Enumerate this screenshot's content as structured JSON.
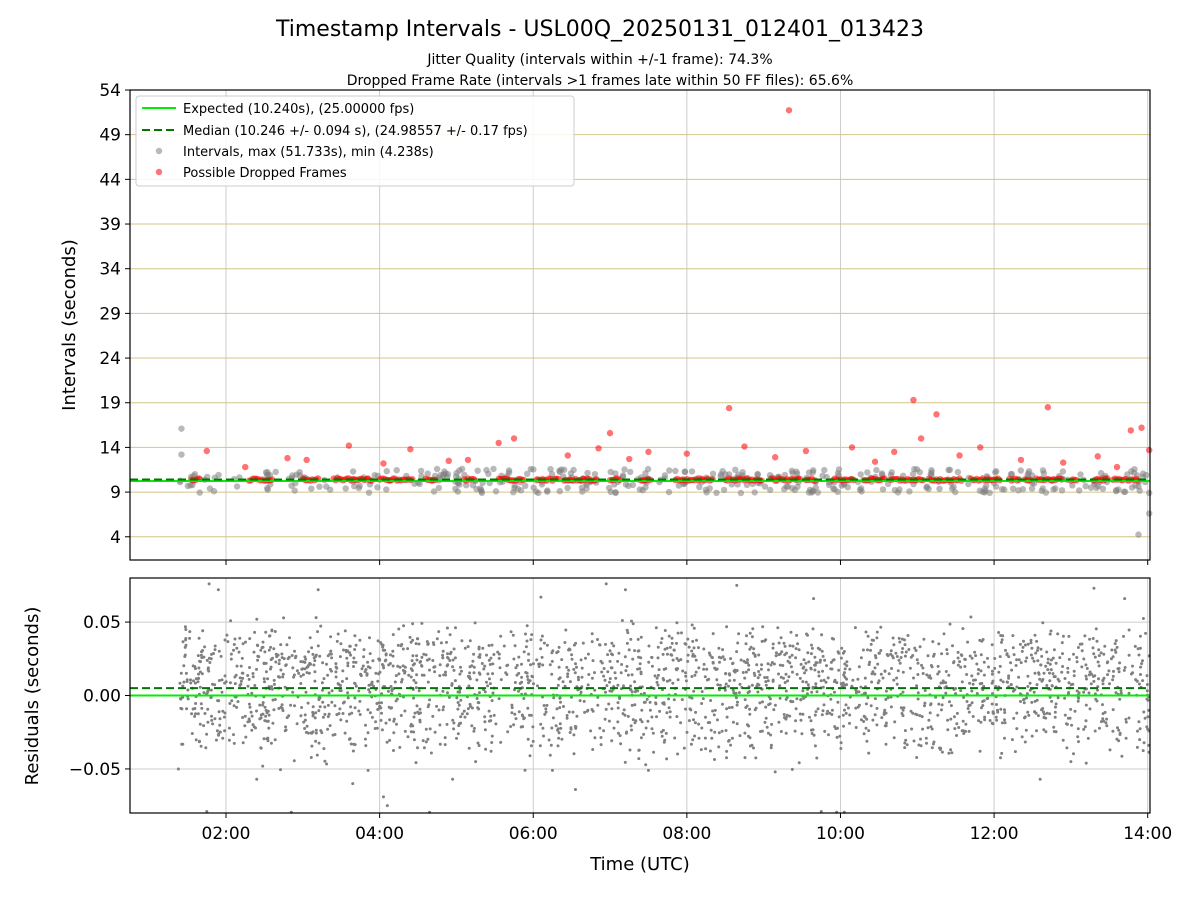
{
  "figure": {
    "title": "Timestamp Intervals - USL00Q_20250131_012401_013423",
    "subtitle_1": "Jitter Quality (intervals within +/-1 frame): 74.3%",
    "subtitle_2": "Dropped Frame Rate (intervals >1 frames late within 50 FF files): 65.6%"
  },
  "chart_data": [
    {
      "type": "scatter",
      "panel": "top",
      "xlabel": "",
      "ylabel": "Intervals (seconds)",
      "x_unit": "hours UTC",
      "xlim": [
        0.75,
        14.03
      ],
      "ylim": [
        1.4,
        54
      ],
      "x_ticks": [
        2,
        4,
        6,
        8,
        10,
        12,
        14
      ],
      "y_ticks": [
        4,
        9,
        14,
        19,
        24,
        29,
        34,
        39,
        44,
        49,
        54
      ],
      "y_tick_labels": [
        "4",
        "9",
        "14",
        "19",
        "24",
        "29",
        "34",
        "39",
        "44",
        "49",
        "54"
      ],
      "grid": "on",
      "legend_placement": "top-left",
      "colors": {
        "expected": "#00ee00",
        "median": "#007700",
        "intervals": "#808080",
        "dropped": "#ff0000",
        "hgrid": "#d4c48a",
        "vgrid": "#cccccc"
      },
      "lines": {
        "expected": {
          "name": "Expected (10.240s), (25.00000 fps)",
          "y": 10.24
        },
        "median": {
          "name": "Median (10.246 +/- 0.094 s), (24.98557 +/- 0.17 fps)",
          "y": 10.246
        }
      },
      "series": [
        {
          "name": "Intervals, max (51.733s), min (4.238s)",
          "points": [
            [
              1.42,
              16.1
            ],
            [
              1.42,
              13.2
            ],
            [
              13.88,
              4.24
            ],
            [
              14.02,
              6.6
            ],
            [
              13.98,
              10.9
            ]
          ],
          "band": {
            "x": [
              1.4,
              14.02
            ],
            "y": [
              8.9,
              11.6
            ],
            "count": 420
          }
        },
        {
          "name": "Possible Dropped Frames",
          "points": [
            [
              9.33,
              51.73
            ],
            [
              8.55,
              18.4
            ],
            [
              10.95,
              19.3
            ],
            [
              11.25,
              17.7
            ],
            [
              12.7,
              18.5
            ],
            [
              13.78,
              15.9
            ],
            [
              13.92,
              16.2
            ],
            [
              7.0,
              15.6
            ],
            [
              5.75,
              15.0
            ],
            [
              5.55,
              14.5
            ],
            [
              11.05,
              15.0
            ],
            [
              3.6,
              14.2
            ],
            [
              14.02,
              13.7
            ],
            [
              10.15,
              14.0
            ],
            [
              11.82,
              14.0
            ],
            [
              8.75,
              14.1
            ],
            [
              4.4,
              13.8
            ],
            [
              9.55,
              13.6
            ],
            [
              1.75,
              13.6
            ],
            [
              6.85,
              13.9
            ],
            [
              12.35,
              12.6
            ],
            [
              12.9,
              12.3
            ],
            [
              13.35,
              13.0
            ],
            [
              2.8,
              12.8
            ],
            [
              3.05,
              12.6
            ],
            [
              4.9,
              12.5
            ],
            [
              6.45,
              13.1
            ],
            [
              7.5,
              13.5
            ],
            [
              8.0,
              13.3
            ],
            [
              10.7,
              13.5
            ],
            [
              11.55,
              13.1
            ],
            [
              2.25,
              11.8
            ],
            [
              4.05,
              12.2
            ],
            [
              5.15,
              12.6
            ],
            [
              7.25,
              12.7
            ],
            [
              9.15,
              12.9
            ],
            [
              10.45,
              12.4
            ],
            [
              13.6,
              11.8
            ]
          ],
          "run_segments": [
            [
              1.55,
              1.65
            ],
            [
              2.3,
              2.6
            ],
            [
              3.0,
              3.2
            ],
            [
              3.4,
              3.9
            ],
            [
              4.0,
              4.45
            ],
            [
              4.6,
              4.75
            ],
            [
              5.1,
              5.25
            ],
            [
              5.55,
              5.9
            ],
            [
              6.05,
              6.35
            ],
            [
              6.4,
              6.85
            ],
            [
              7.0,
              7.15
            ],
            [
              7.4,
              7.55
            ],
            [
              7.85,
              8.35
            ],
            [
              8.5,
              9.0
            ],
            [
              9.1,
              9.5
            ],
            [
              9.55,
              9.7
            ],
            [
              9.9,
              10.2
            ],
            [
              10.3,
              10.6
            ],
            [
              10.65,
              11.1
            ],
            [
              11.15,
              11.6
            ],
            [
              11.7,
              12.1
            ],
            [
              12.2,
              12.35
            ],
            [
              12.4,
              12.5
            ],
            [
              12.55,
              12.9
            ],
            [
              13.0,
              13.1
            ],
            [
              13.3,
              13.5
            ],
            [
              13.55,
              13.9
            ]
          ],
          "run_y": 10.4
        }
      ]
    },
    {
      "type": "scatter",
      "panel": "bottom",
      "xlabel": "Time (UTC)",
      "ylabel": "Residuals (seconds)",
      "x_unit": "hours UTC",
      "xlim": [
        0.75,
        14.03
      ],
      "ylim": [
        -0.08,
        0.08
      ],
      "x_ticks": [
        2,
        4,
        6,
        8,
        10,
        12,
        14
      ],
      "x_tick_labels": [
        "02:00",
        "04:00",
        "06:00",
        "08:00",
        "10:00",
        "12:00",
        "14:00"
      ],
      "y_ticks": [
        -0.05,
        0.0,
        0.05
      ],
      "y_tick_labels": [
        "−0.05",
        "0.00",
        "0.05"
      ],
      "grid": "on",
      "colors": {
        "points": "#808080",
        "expected": "#00ee00",
        "median": "#007700",
        "grid": "#cccccc"
      },
      "lines": {
        "expected": 0.0,
        "median": 0.005
      },
      "series": [
        {
          "name": "Residuals",
          "band": {
            "x": [
              1.4,
              14.02
            ],
            "upper_cluster": 0.02,
            "lower_cluster": -0.015,
            "spread": 0.03,
            "count": 2400
          },
          "outliers": [
            [
              1.38,
              -0.05
            ],
            [
              1.78,
              0.076
            ],
            [
              1.9,
              0.072
            ],
            [
              1.75,
              -0.079
            ],
            [
              2.4,
              -0.057
            ],
            [
              2.85,
              -0.08
            ],
            [
              3.2,
              0.072
            ],
            [
              3.65,
              -0.06
            ],
            [
              3.85,
              -0.051
            ],
            [
              4.05,
              -0.069
            ],
            [
              4.1,
              -0.075
            ],
            [
              4.65,
              -0.08
            ],
            [
              4.95,
              -0.057
            ],
            [
              5.25,
              -0.045
            ],
            [
              6.1,
              0.067
            ],
            [
              6.25,
              -0.051
            ],
            [
              6.55,
              -0.064
            ],
            [
              6.95,
              0.076
            ],
            [
              7.2,
              0.072
            ],
            [
              7.5,
              -0.051
            ],
            [
              8.65,
              0.075
            ],
            [
              9.15,
              -0.052
            ],
            [
              9.65,
              0.066
            ],
            [
              9.75,
              -0.079
            ],
            [
              9.95,
              -0.08
            ],
            [
              10.05,
              -0.086
            ],
            [
              12.6,
              -0.057
            ],
            [
              13.0,
              -0.045
            ],
            [
              13.2,
              -0.046
            ],
            [
              13.3,
              0.073
            ],
            [
              13.7,
              0.066
            ]
          ]
        }
      ]
    }
  ],
  "legend": [
    {
      "label": "Expected (10.240s), (25.00000 fps)",
      "marker": "line-solid",
      "color": "#00ee00"
    },
    {
      "label": "Median (10.246 +/- 0.094 s), (24.98557 +/- 0.17 fps)",
      "marker": "line-dashed",
      "color": "#007700"
    },
    {
      "label": "Intervals, max (51.733s), min (4.238s)",
      "marker": "dot",
      "color": "#808080"
    },
    {
      "label": "Possible Dropped Frames",
      "marker": "dot",
      "color": "#ff0000"
    }
  ]
}
